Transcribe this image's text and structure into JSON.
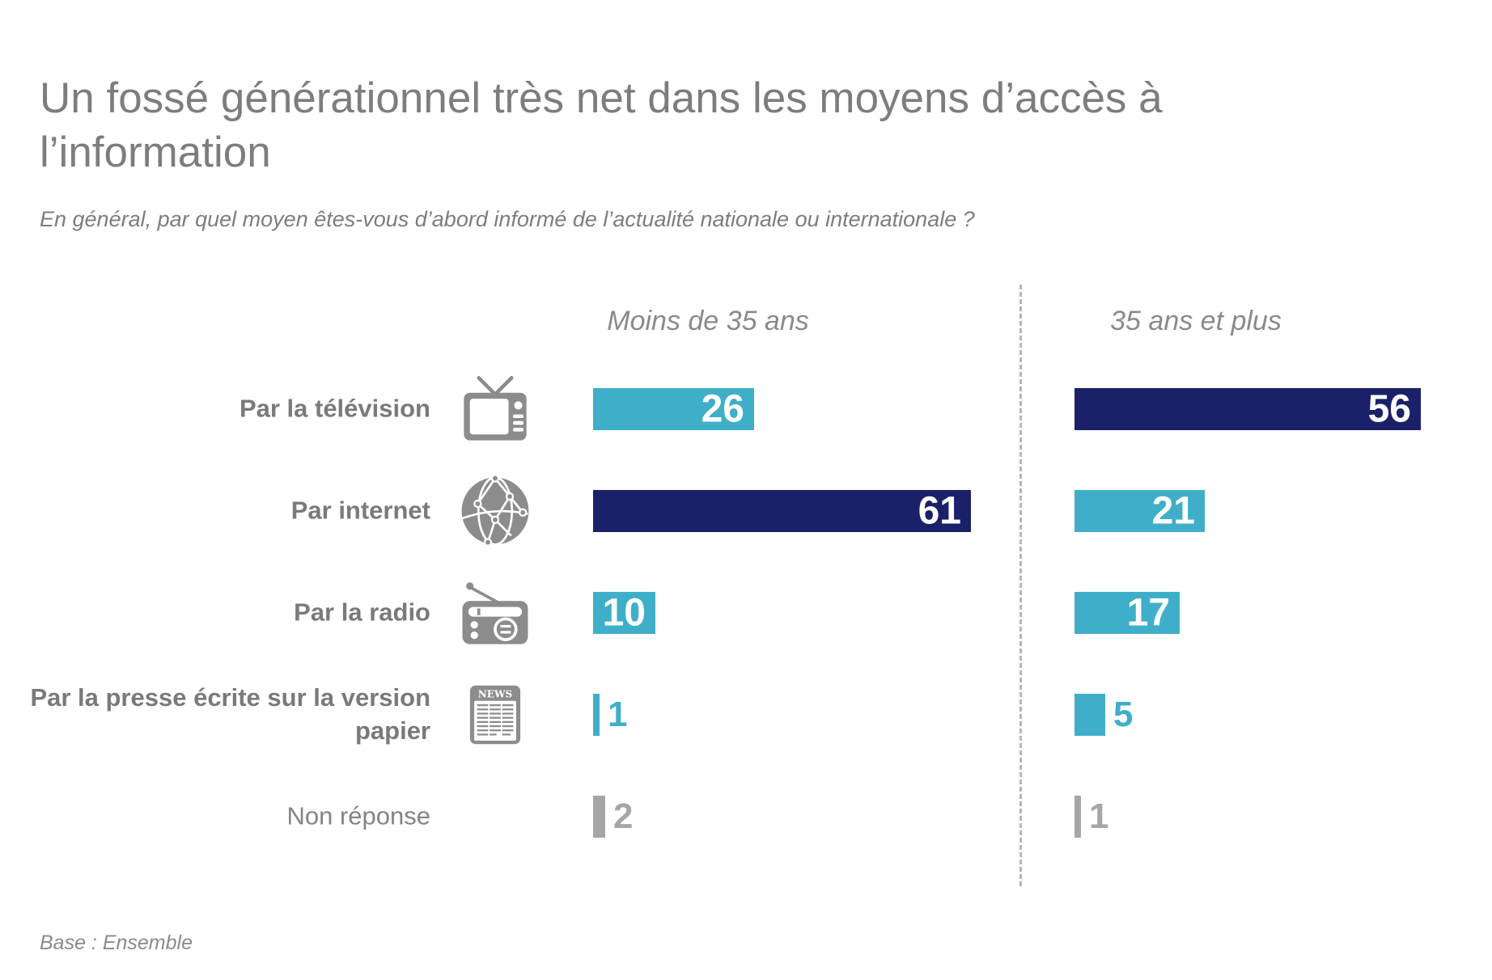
{
  "page": {
    "title": "Un fossé générationnel très net dans les moyens d’accès à l’information",
    "subtitle": "En général, par quel moyen êtes-vous d’abord informé de l’actualité nationale ou internationale ?",
    "footnote": "Base : Ensemble"
  },
  "chart_data": {
    "type": "bar",
    "orientation": "horizontal",
    "value_unit": "percent",
    "grid": false,
    "legend_position": "column-headers",
    "categories": [
      "Par la télévision",
      "Par internet",
      "Par la radio",
      "Par la presse écrite sur la version papier",
      "Non réponse"
    ],
    "series": [
      {
        "name": "Moins de 35 ans",
        "values": [
          26,
          61,
          10,
          1,
          2
        ]
      },
      {
        "name": "35 ans et plus",
        "values": [
          56,
          21,
          17,
          5,
          1
        ]
      }
    ],
    "palette": {
      "teal": "#3FAFC9",
      "navy": "#1B2168",
      "gray": "#A6A6A6"
    },
    "bar_colors": [
      [
        "teal",
        "navy"
      ],
      [
        "navy",
        "teal"
      ],
      [
        "teal",
        "teal"
      ],
      [
        "teal",
        "teal"
      ],
      [
        "gray",
        "gray"
      ]
    ],
    "icons": [
      "tv-icon",
      "globe-icon",
      "radio-icon",
      "newspaper-icon",
      null
    ],
    "newspaper_icon_text": "NEWS"
  }
}
